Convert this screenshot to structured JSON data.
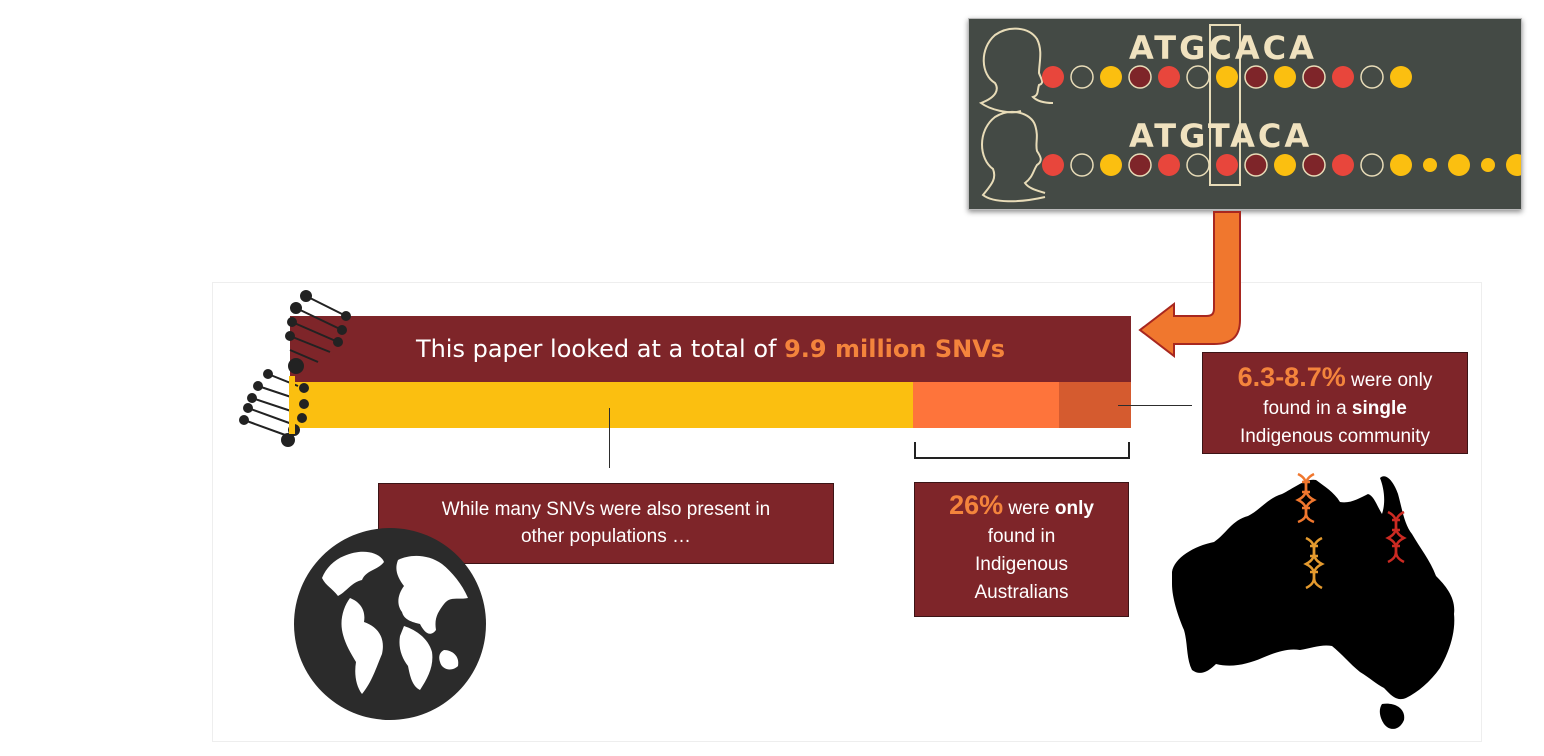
{
  "dna_comparison": {
    "sequence_top": "ATGCACA",
    "sequence_bottom": "ATGTACA"
  },
  "main_bar": {
    "text_prefix": "This paper looked at a total of ",
    "text_highlight": "9.9 million SNVs"
  },
  "segments": [
    {
      "name": "shared-with-other-populations",
      "color": "#fbbf10"
    },
    {
      "name": "only-indigenous-australians",
      "color": "#fe743b"
    },
    {
      "name": "single-community",
      "color": "#d55b2f"
    }
  ],
  "callouts": {
    "global": {
      "line1": "While many SNVs were also present in",
      "line2": "other populations …"
    },
    "indigenous": {
      "pct": "26%",
      "t1": " were ",
      "t1b": "only",
      "l2": "found in",
      "l3": "Indigenous",
      "l4": "Australians"
    },
    "single": {
      "pct": "6.3-8.7%",
      "t1": " were only",
      "l2a": "found in a ",
      "l2b": "single",
      "l3": "Indigenous community"
    }
  },
  "colors": {
    "maroon": "#7e2529",
    "orange": "#f4843c",
    "yellow": "#fbbf10",
    "dark_panel": "#444a45"
  },
  "icons": [
    "globe-icon",
    "australia-map-icon",
    "dna-helix-icon",
    "head-silhouette-icon",
    "down-left-arrow-icon"
  ]
}
